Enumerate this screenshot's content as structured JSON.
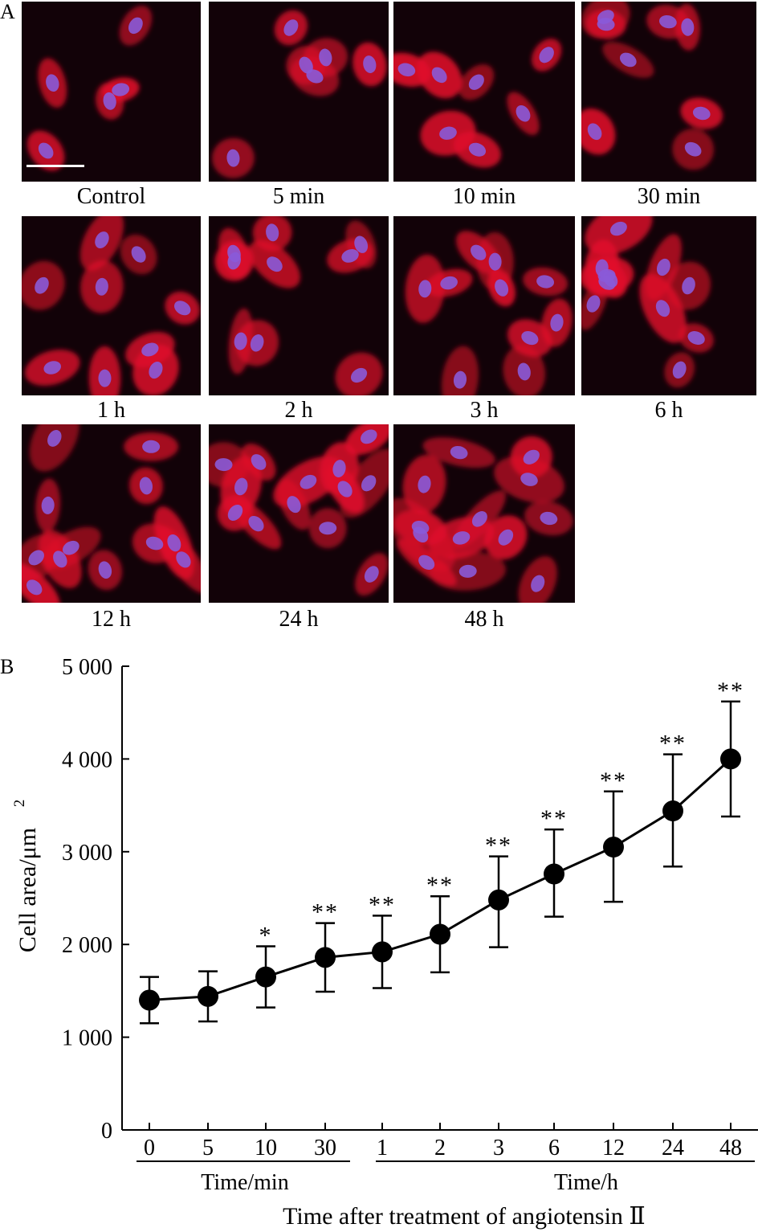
{
  "panels": {
    "a": "A",
    "b": "B"
  },
  "micrographs": [
    {
      "caption": "Control"
    },
    {
      "caption": "5 min"
    },
    {
      "caption": "10 min"
    },
    {
      "caption": "30 min"
    },
    {
      "caption": "1 h"
    },
    {
      "caption": "2 h"
    },
    {
      "caption": "3 h"
    },
    {
      "caption": "6 h"
    },
    {
      "caption": "12 h"
    },
    {
      "caption": "24 h"
    },
    {
      "caption": "48 h"
    }
  ],
  "colors": {
    "actin": "#e0102a",
    "nucleus": "#8a5ad8",
    "background": "#120208"
  },
  "chart_data": {
    "type": "line",
    "ylabel": "Cell area/μm",
    "ylabel_superscript": "2",
    "xlabel": "Time after treatment of angiotensin Ⅱ",
    "group_labels": [
      {
        "label": "Time/min",
        "ticks": [
          "0",
          "5",
          "10",
          "30"
        ]
      },
      {
        "label": "Time/h",
        "ticks": [
          "1",
          "2",
          "3",
          "6",
          "12",
          "24",
          "48"
        ]
      }
    ],
    "x": [
      "0",
      "5",
      "10",
      "30",
      "1",
      "2",
      "3",
      "6",
      "12",
      "24",
      "48"
    ],
    "y": [
      1400,
      1440,
      1650,
      1860,
      1920,
      2110,
      2480,
      2760,
      3050,
      3440,
      4000
    ],
    "error_plus": [
      250,
      270,
      330,
      370,
      390,
      410,
      470,
      480,
      600,
      610,
      620
    ],
    "error_minus": [
      250,
      270,
      330,
      370,
      390,
      410,
      510,
      460,
      590,
      600,
      620
    ],
    "significance": [
      "",
      "",
      "*",
      "**",
      "**",
      "**",
      "**",
      "**",
      "**",
      "**",
      "**"
    ],
    "ylim": [
      0,
      5000
    ],
    "yticks": [
      0,
      1000,
      2000,
      3000,
      4000,
      5000
    ],
    "ytick_labels": [
      "0",
      "1 000",
      "2 000",
      "3 000",
      "4 000",
      "5 000"
    ]
  }
}
